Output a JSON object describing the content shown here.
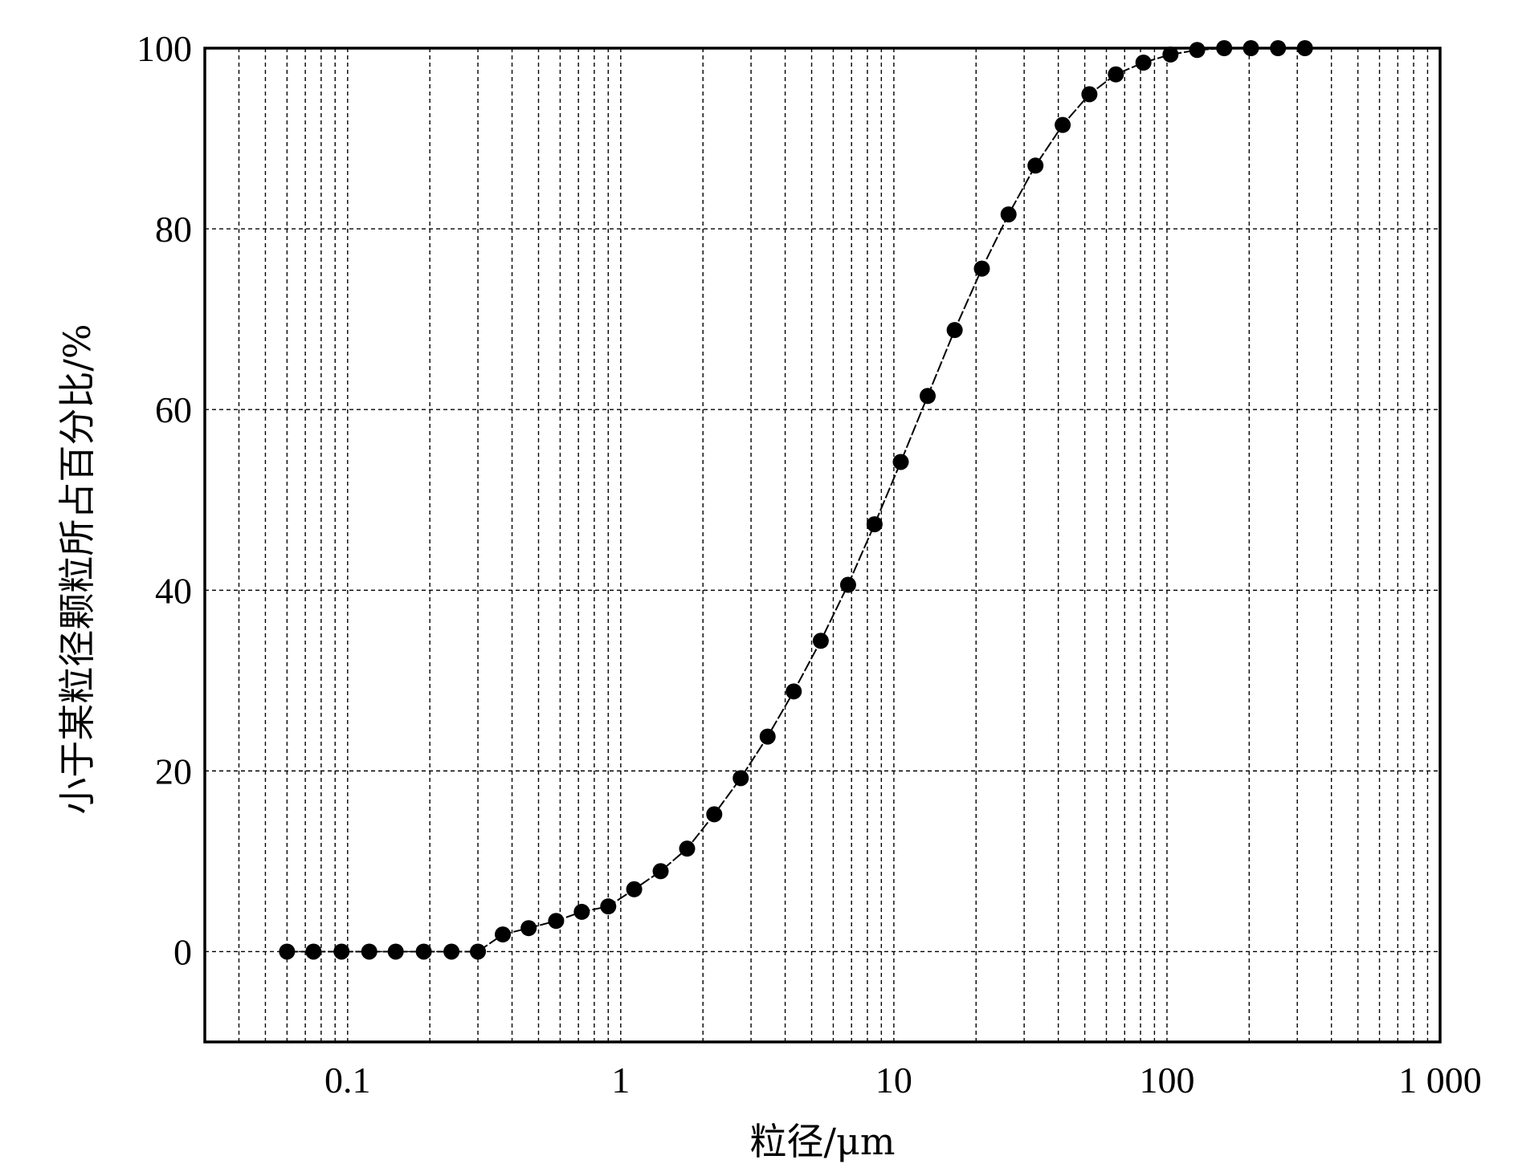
{
  "chart_data": {
    "type": "scatter",
    "xscale": "log",
    "xlabel": "粒径/μm",
    "ylabel": "小于某粒径颗粒所占百分比/%",
    "xlim": [
      0.03,
      1000
    ],
    "ylim": [
      -10,
      100
    ],
    "xticks": [
      0.1,
      1,
      10,
      100,
      1000
    ],
    "xtick_labels": [
      "0.1",
      "1",
      "10",
      "100",
      "1 000"
    ],
    "yticks": [
      0,
      20,
      40,
      60,
      80,
      100
    ],
    "ytick_labels": [
      "0",
      "20",
      "40",
      "60",
      "80",
      "100"
    ],
    "grid": true,
    "series": [
      {
        "marker": "filled-circle",
        "line": "dashed",
        "color": "#000000",
        "x": [
          0.06,
          0.075,
          0.095,
          0.12,
          0.15,
          0.19,
          0.24,
          0.3,
          0.37,
          0.46,
          0.58,
          0.72,
          0.9,
          1.12,
          1.4,
          1.75,
          2.2,
          2.75,
          3.45,
          4.3,
          5.4,
          6.8,
          8.5,
          10.6,
          13.3,
          16.7,
          21,
          26.3,
          33,
          41.5,
          52,
          65,
          82,
          103,
          129,
          162,
          203,
          255,
          320
        ],
        "y": [
          0,
          0,
          0,
          0,
          0,
          0,
          0,
          0,
          1.9,
          2.6,
          3.4,
          4.4,
          5.0,
          6.9,
          8.9,
          11.4,
          15.2,
          19.2,
          23.8,
          28.8,
          34.4,
          40.6,
          47.3,
          54.2,
          61.5,
          68.8,
          75.6,
          81.6,
          87.0,
          91.5,
          94.9,
          97.1,
          98.4,
          99.3,
          99.8,
          100,
          100,
          100,
          100
        ]
      }
    ]
  }
}
